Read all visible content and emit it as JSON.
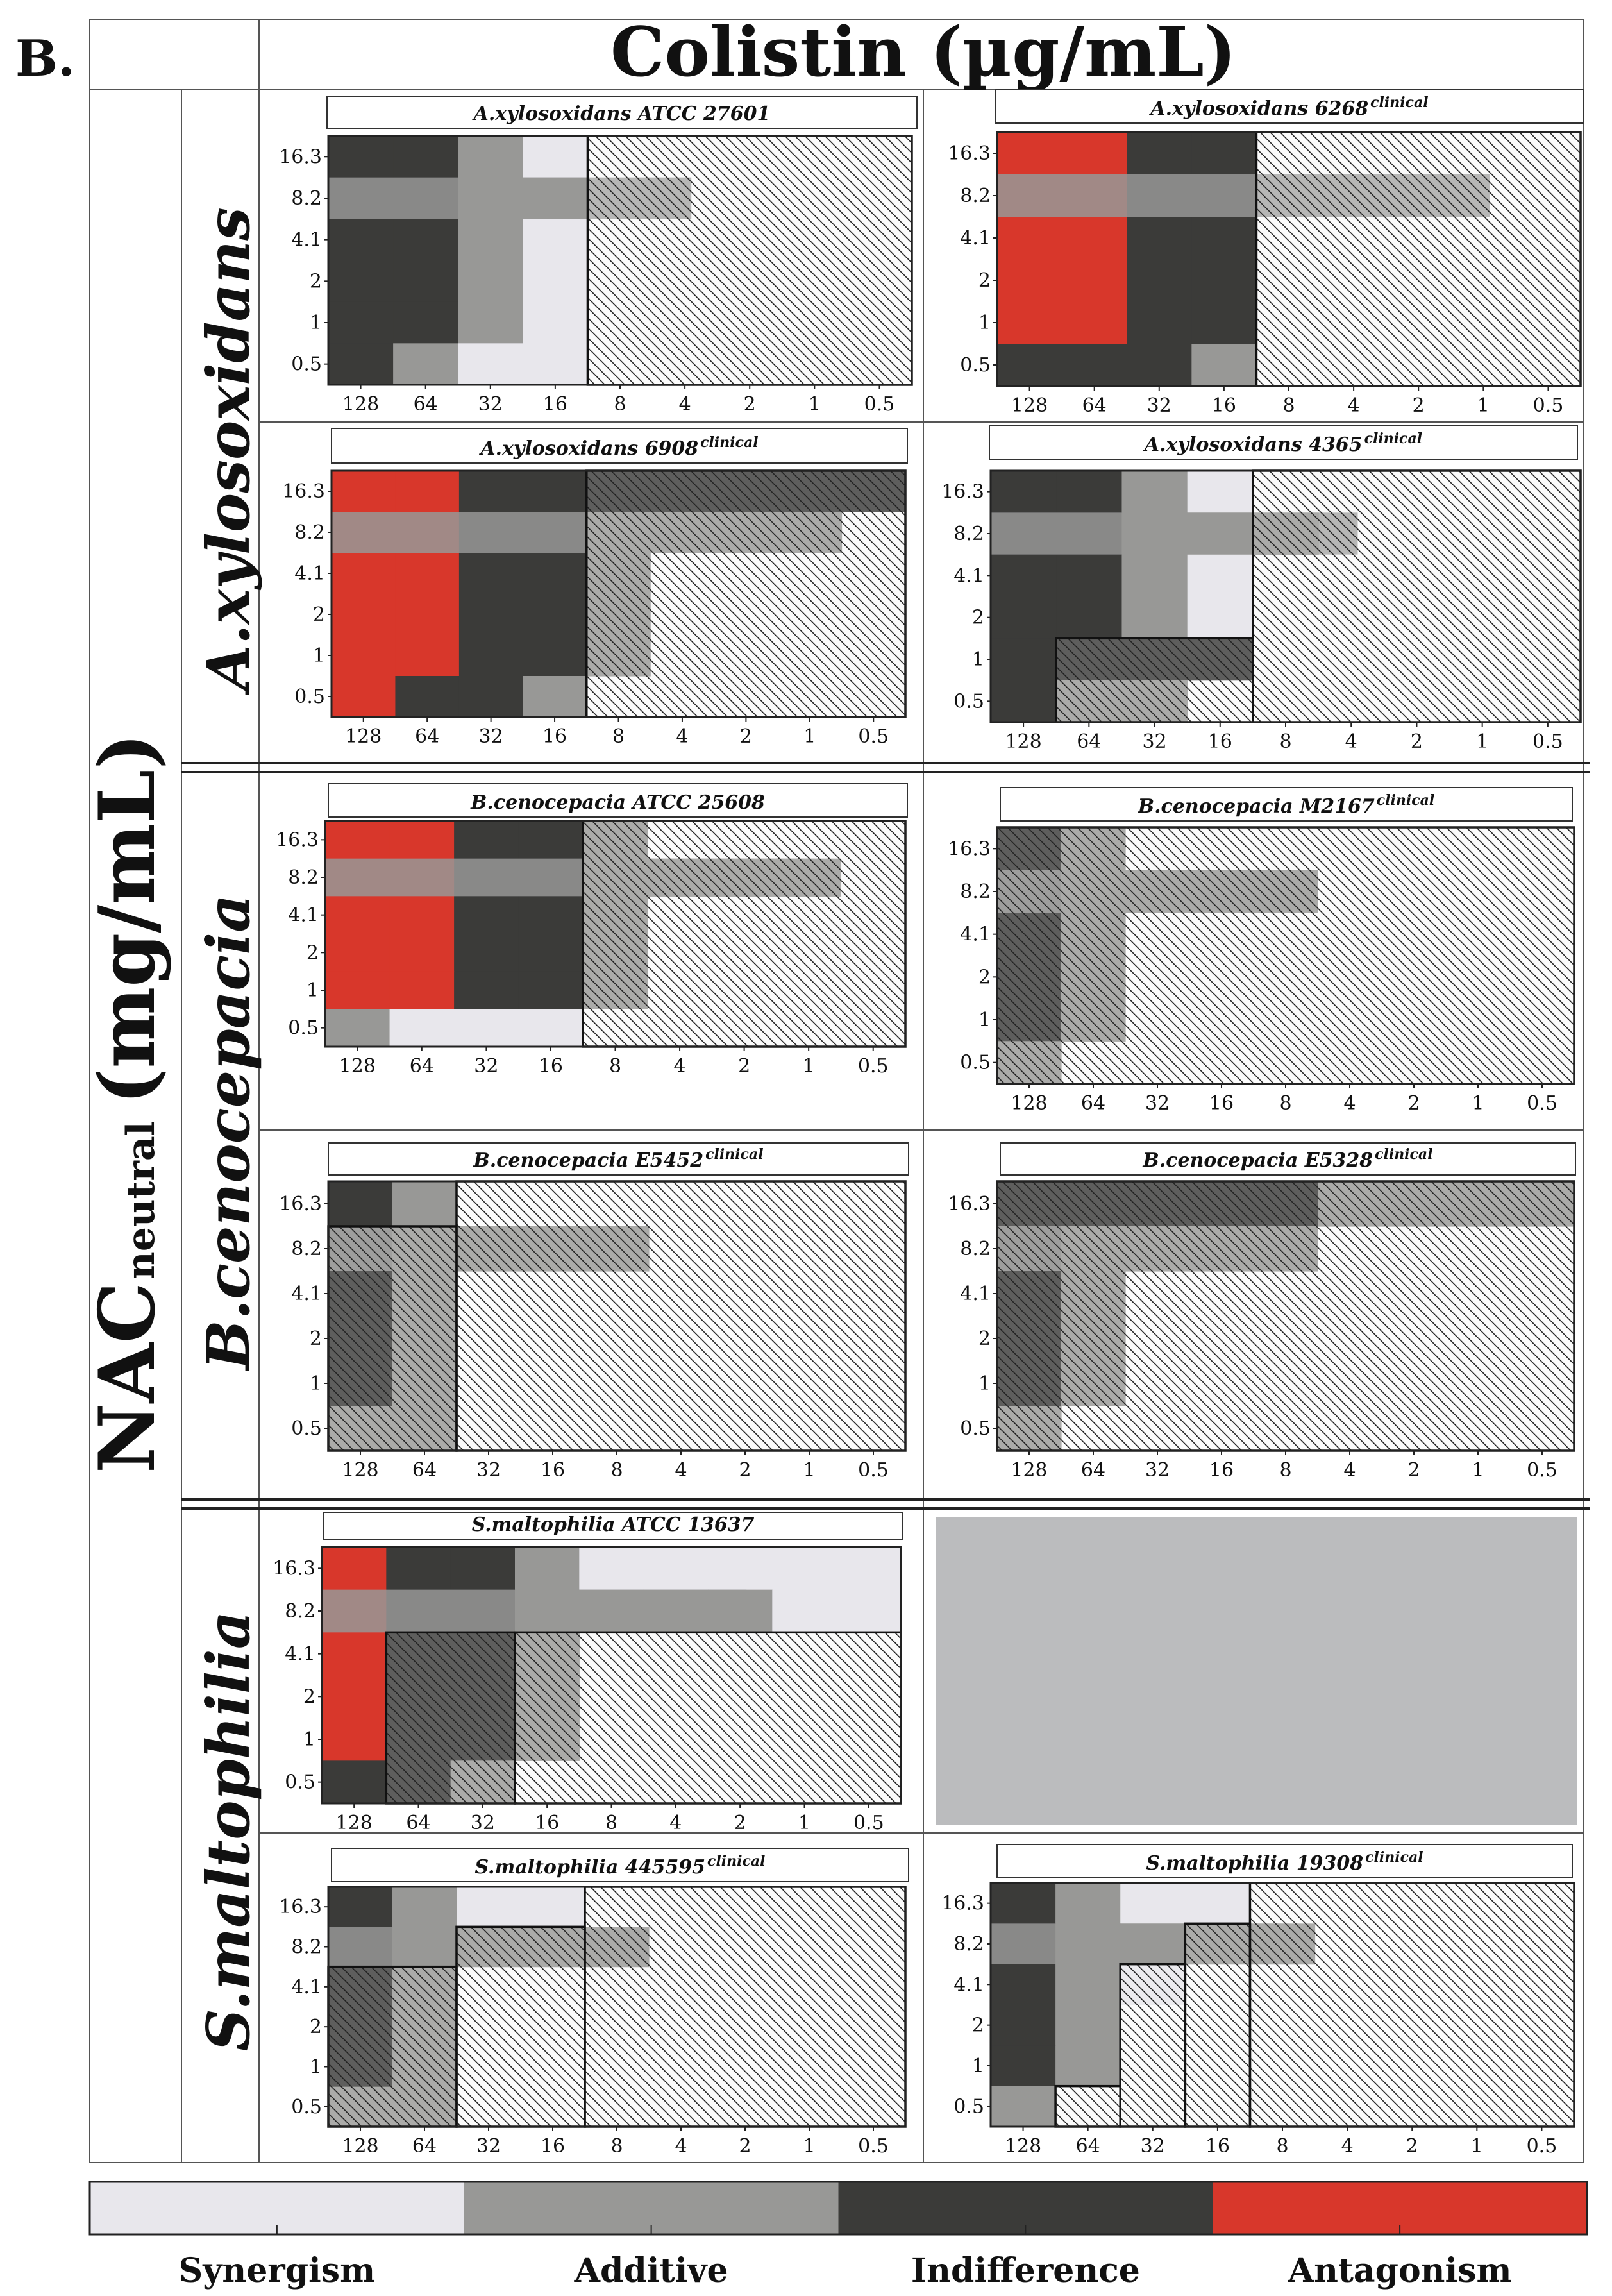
{
  "figure": {
    "label": "B.",
    "column_title": "Colistin (µg/mL)",
    "y_title_main": "NAC",
    "y_title_sub": "neutral",
    "y_title_unit": "(mg/mL)"
  },
  "colors": {
    "Synergism": "#e8e7ec",
    "Additive": "#989896",
    "Indifference": "#3b3b39",
    "Antagonism": "#d8372b",
    "empty_cell": "#bbbcbe",
    "hatch_line": "#222222"
  },
  "legend": [
    "Synergism",
    "Additive",
    "Indifference",
    "Antagonism"
  ],
  "species": [
    "A.xylosoxidans",
    "B.cenocepacia",
    "S.maltophilia"
  ],
  "chart_data": {
    "type": "heatmap",
    "x_label": "Colistin (µg/mL)",
    "y_label": "NAC neutral (mg/mL)",
    "x_values": [
      "128",
      "64",
      "32",
      "16",
      "8",
      "4",
      "2",
      "1",
      "0.5"
    ],
    "y_values": [
      "16.3",
      "8.2",
      "4.1",
      "2",
      "1",
      "0.5"
    ],
    "categories": [
      "Synergism",
      "Additive",
      "Indifference",
      "Antagonism"
    ],
    "note": "grid rows are listed top (16.3) to bottom (0.5); S=Synergism, A=Additive, I=Indifference, X=Antagonism, .=no effect shown; hatched areas mark concentrations that inhibit growth; highlight is a horizontal band at NAC 8.2 reaching to the given colistin value",
    "panels": [
      {
        "title": "A.xylosoxidans ATCC 27601",
        "clinical": false,
        "grid": [
          "IIAS.....",
          "IIAA.....",
          "IIAS.....",
          "IIAS.....",
          "IIAS.....",
          "IASS....."
        ],
        "hatch": [
          {
            "x_from": "8",
            "x_to": "0.5",
            "y_from": "16.3",
            "y_to": "0.5"
          }
        ],
        "highlight": {
          "color": "Additive",
          "to_x": "4"
        }
      },
      {
        "title": "A.xylosoxidans 6268",
        "clinical": true,
        "grid": [
          "XXII.....",
          "XXII.....",
          "XXII.....",
          "XXII.....",
          "XXII.....",
          "IIIA....."
        ],
        "hatch": [
          {
            "x_from": "8",
            "x_to": "0.5",
            "y_from": "16.3",
            "y_to": "0.5"
          }
        ],
        "highlight": {
          "color": "Additive",
          "to_x": "1"
        }
      },
      {
        "title": "A.xylosoxidans 6908",
        "clinical": true,
        "grid": [
          "XXIIIIIII",
          "XXIIAAAA.",
          "XXIIA....",
          "XXIIA....",
          "XXIIA....",
          "XIIA....."
        ],
        "hatch": [
          {
            "x_from": "8",
            "x_to": "0.5",
            "y_from": "16.3",
            "y_to": "0.5"
          }
        ],
        "highlight": {
          "color": "Additive",
          "to_x": "1"
        }
      },
      {
        "title": "A.xylosoxidans 4365",
        "clinical": true,
        "grid": [
          "IIAS.....",
          "IIAAA....",
          "IIAS.....",
          "IIAS.....",
          "IIII.....",
          "IAA......"
        ],
        "hatch": [
          {
            "x_from": "8",
            "x_to": "0.5",
            "y_from": "16.3",
            "y_to": "0.5"
          },
          {
            "x_from": "64",
            "x_to": "16",
            "y_from": "1",
            "y_to": "0.5"
          }
        ],
        "highlight": {
          "color": "Additive",
          "to_x": "4"
        }
      },
      {
        "title": "B.cenocepacia ATCC 25608",
        "clinical": false,
        "grid": [
          "XXIIA....",
          "XXIIAAAA.",
          "XXIIA....",
          "XXIIA....",
          "XXIIA....",
          "ASSS....."
        ],
        "hatch": [
          {
            "x_from": "8",
            "x_to": "0.5",
            "y_from": "16.3",
            "y_to": "0.5"
          }
        ],
        "highlight": {
          "color": "Additive",
          "to_x": "1"
        }
      },
      {
        "title": "B.cenocepacia M2167",
        "clinical": true,
        "grid": [
          "IA.......",
          "IAAAA....",
          "IA.......",
          "IA.......",
          "IA.......",
          "A........"
        ],
        "hatch": [
          {
            "x_from": "128",
            "x_to": "0.5",
            "y_from": "16.3",
            "y_to": "0.5"
          }
        ],
        "highlight": {
          "color": "Additive",
          "to_x": "8"
        }
      },
      {
        "title": "B.cenocepacia E5452",
        "clinical": true,
        "grid": [
          "IA.......",
          "IAAAA....",
          "IA.......",
          "IA.......",
          "IA.......",
          "AA......."
        ],
        "hatch": [
          {
            "x_from": "128",
            "x_to": "64",
            "y_from": "8.2",
            "y_to": "0.5"
          },
          {
            "x_from": "32",
            "x_to": "0.5",
            "y_from": "16.3",
            "y_to": "0.5"
          }
        ],
        "highlight": {
          "color": "Additive",
          "to_x": "8"
        }
      },
      {
        "title": "B.cenocepacia E5328",
        "clinical": true,
        "grid": [
          "IIIIIAAAA",
          "IAAAA....",
          "IA.......",
          "IA.......",
          "IA.......",
          "A........"
        ],
        "hatch": [
          {
            "x_from": "128",
            "x_to": "0.5",
            "y_from": "16.3",
            "y_to": "0.5"
          }
        ],
        "highlight": {
          "color": "Additive",
          "to_x": "8"
        }
      },
      {
        "title": "S.maltophilia ATCC 13637",
        "clinical": false,
        "grid": [
          "XIIASSSSS",
          "XIIAAAASS",
          "XIIA.....",
          "XIIA.....",
          "XIIA.....",
          "IIA......"
        ],
        "hatch": [
          {
            "x_from": "64",
            "x_to": "32",
            "y_from": "4.1",
            "y_to": "0.5"
          },
          {
            "x_from": "16",
            "x_to": "0.5",
            "y_from": "4.1",
            "y_to": "0.5"
          }
        ],
        "highlight": {
          "color": "Additive",
          "to_x": "2"
        }
      },
      {
        "title": "S.maltophilia 445595",
        "clinical": true,
        "grid": [
          "IASS.....",
          "IAAAA....",
          "IA.......",
          "IA.......",
          "IA.......",
          "AA......."
        ],
        "hatch": [
          {
            "x_from": "128",
            "x_to": "64",
            "y_from": "4.1",
            "y_to": "0.5"
          },
          {
            "x_from": "32",
            "x_to": "16",
            "y_from": "8.2",
            "y_to": "0.5"
          },
          {
            "x_from": "8",
            "x_to": "0.5",
            "y_from": "16.3",
            "y_to": "0.5"
          }
        ],
        "highlight": {
          "color": "Additive",
          "to_x": "8"
        }
      },
      {
        "title": "S.maltophilia 19308",
        "clinical": true,
        "grid": [
          "IASS.....",
          "IAAAA....",
          "IAS......",
          "IA.......",
          "IA.......",
          "A........"
        ],
        "hatch": [
          {
            "x_from": "64",
            "x_to": "64",
            "y_from": "0.5",
            "y_to": "0.5"
          },
          {
            "x_from": "32",
            "x_to": "32",
            "y_from": "4.1",
            "y_to": "0.5"
          },
          {
            "x_from": "16",
            "x_to": "16",
            "y_from": "8.2",
            "y_to": "0.5"
          },
          {
            "x_from": "8",
            "x_to": "0.5",
            "y_from": "16.3",
            "y_to": "0.5"
          }
        ],
        "highlight": {
          "color": "Additive",
          "to_x": "8"
        }
      }
    ]
  }
}
